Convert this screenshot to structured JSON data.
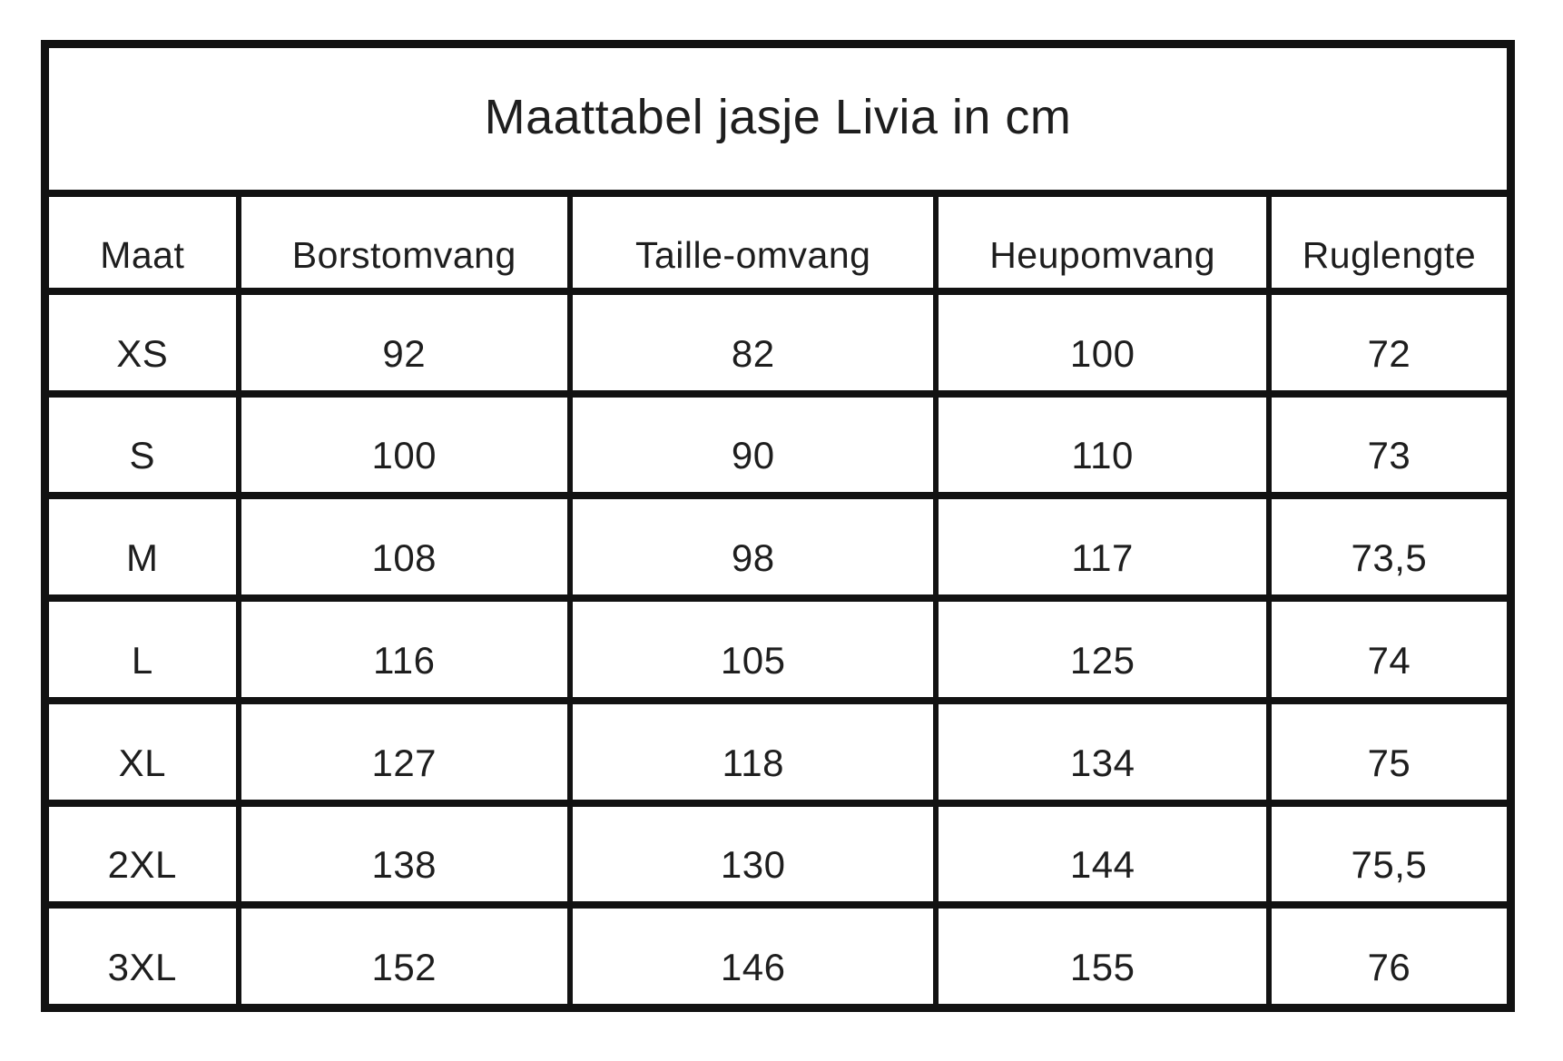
{
  "table": {
    "title": "Maattabel jasje Livia in cm",
    "columns": [
      "Maat",
      "Borstomvang",
      "Taille-omvang",
      "Heupomvang",
      "Ruglengte"
    ],
    "rows": [
      {
        "size": "XS",
        "borst": "92",
        "taille": "82",
        "heup": "100",
        "rug": "72"
      },
      {
        "size": "S",
        "borst": "100",
        "taille": "90",
        "heup": "110",
        "rug": "73"
      },
      {
        "size": "M",
        "borst": "108",
        "taille": "98",
        "heup": "117",
        "rug": "73,5"
      },
      {
        "size": "L",
        "borst": "116",
        "taille": "105",
        "heup": "125",
        "rug": "74"
      },
      {
        "size": "XL",
        "borst": "127",
        "taille": "118",
        "heup": "134",
        "rug": "75"
      },
      {
        "size": "2XL",
        "borst": "138",
        "taille": "130",
        "heup": "144",
        "rug": "75,5"
      },
      {
        "size": "3XL",
        "borst": "152",
        "taille": "146",
        "heup": "155",
        "rug": "76"
      }
    ],
    "colors": {
      "border": "#121212",
      "text": "#1e1e1e",
      "background": "#ffffff"
    }
  }
}
